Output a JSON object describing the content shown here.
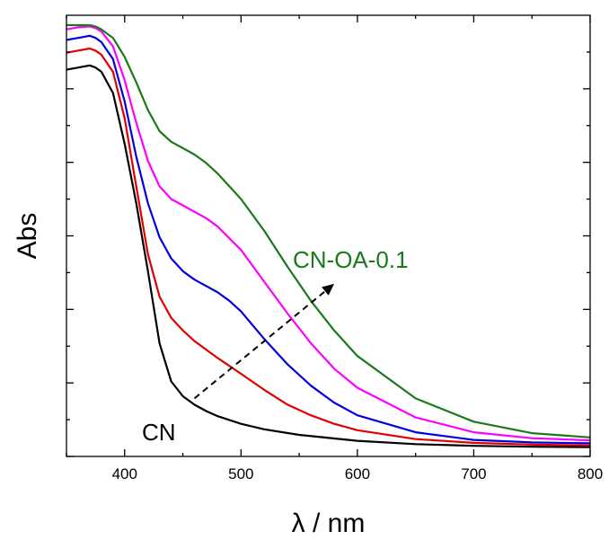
{
  "chart_data": {
    "type": "line",
    "title": "",
    "xlabel": "λ / nm",
    "ylabel": "Abs",
    "xlim": [
      350,
      800
    ],
    "ylim": [
      0,
      1
    ],
    "x_ticks": [
      400,
      500,
      600,
      700,
      800
    ],
    "y_tick_labels_shown": false,
    "grid": false,
    "legend": "none",
    "annotations": [
      {
        "text": "CN",
        "color": "#000000"
      },
      {
        "text": "CN-OA-0.1",
        "color": "#1a7a1a"
      }
    ],
    "arrow": {
      "style": "dashed",
      "from": [
        460,
        0.12
      ],
      "to": [
        580,
        0.39
      ],
      "color": "#000000"
    },
    "series": [
      {
        "color": "#000000",
        "x": [
          350,
          360,
          370,
          375,
          380,
          390,
          400,
          410,
          420,
          430,
          440,
          450,
          460,
          470,
          480,
          500,
          520,
          550,
          600,
          650,
          700,
          750,
          800
        ],
        "y": [
          0.895,
          0.9,
          0.905,
          0.9,
          0.89,
          0.84,
          0.72,
          0.58,
          0.42,
          0.25,
          0.16,
          0.125,
          0.105,
          0.09,
          0.078,
          0.06,
          0.047,
          0.034,
          0.02,
          0.012,
          0.008,
          0.006,
          0.005
        ]
      },
      {
        "color": "#e00000",
        "x": [
          350,
          360,
          370,
          375,
          380,
          390,
          400,
          410,
          420,
          430,
          440,
          450,
          460,
          470,
          480,
          500,
          520,
          540,
          560,
          580,
          600,
          650,
          700,
          750,
          800
        ],
        "y": [
          0.935,
          0.94,
          0.945,
          0.94,
          0.93,
          0.89,
          0.78,
          0.62,
          0.46,
          0.36,
          0.31,
          0.28,
          0.255,
          0.235,
          0.215,
          0.178,
          0.14,
          0.105,
          0.08,
          0.06,
          0.045,
          0.024,
          0.015,
          0.011,
          0.009
        ]
      },
      {
        "color": "#0000e0",
        "x": [
          350,
          360,
          370,
          375,
          380,
          390,
          400,
          410,
          420,
          430,
          440,
          450,
          460,
          470,
          480,
          490,
          500,
          520,
          540,
          560,
          580,
          600,
          650,
          700,
          750,
          800
        ],
        "y": [
          0.965,
          0.97,
          0.975,
          0.97,
          0.96,
          0.92,
          0.82,
          0.69,
          0.58,
          0.5,
          0.45,
          0.42,
          0.4,
          0.385,
          0.37,
          0.35,
          0.325,
          0.26,
          0.2,
          0.15,
          0.11,
          0.08,
          0.04,
          0.022,
          0.016,
          0.014
        ]
      },
      {
        "color": "#ff00ff",
        "x": [
          350,
          360,
          370,
          375,
          380,
          390,
          400,
          410,
          420,
          430,
          440,
          450,
          460,
          470,
          480,
          500,
          520,
          540,
          560,
          580,
          600,
          650,
          700,
          750,
          800
        ],
        "y": [
          0.99,
          0.995,
          0.997,
          0.993,
          0.985,
          0.95,
          0.87,
          0.77,
          0.68,
          0.62,
          0.59,
          0.575,
          0.56,
          0.545,
          0.525,
          0.47,
          0.395,
          0.32,
          0.25,
          0.19,
          0.145,
          0.075,
          0.04,
          0.026,
          0.021
        ]
      },
      {
        "color": "#1a7a1a",
        "x": [
          350,
          360,
          370,
          375,
          380,
          390,
          400,
          410,
          420,
          430,
          440,
          450,
          460,
          470,
          480,
          500,
          520,
          540,
          560,
          580,
          600,
          650,
          700,
          750,
          800
        ],
        "y": [
          1.0,
          1.0,
          1.0,
          0.997,
          0.99,
          0.97,
          0.925,
          0.865,
          0.8,
          0.75,
          0.725,
          0.71,
          0.695,
          0.675,
          0.65,
          0.59,
          0.515,
          0.43,
          0.35,
          0.28,
          0.22,
          0.12,
          0.065,
          0.038,
          0.028
        ]
      }
    ]
  }
}
